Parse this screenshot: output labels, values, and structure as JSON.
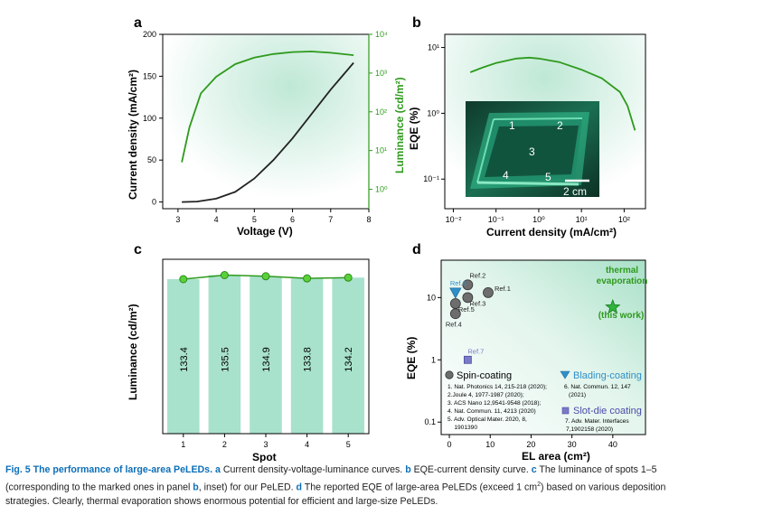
{
  "colors": {
    "green": "#2e9a1c",
    "dark": "#222222",
    "teal": "#1aa886",
    "bar_fill": "#a8e2cc",
    "star": "#2fb53a",
    "ref_gray": "#6d6d6d",
    "blade_blue": "#2f8fc8",
    "slot_purple": "#7a7ac8",
    "caption_blue": "#0d6fb8"
  },
  "panels": {
    "a": "a",
    "b": "b",
    "c": "c",
    "d": "d"
  },
  "chart_data": [
    {
      "panel": "a",
      "type": "line",
      "xlabel": "Voltage (V)",
      "ylabel": "Current density (mA/cm²)",
      "ylabel2": "Luminance (cd/m²)",
      "xlim": [
        2.6,
        8
      ],
      "ylim": [
        -8,
        200
      ],
      "y2lim_log": [
        -0.5,
        4
      ],
      "xticks": [
        "3",
        "4",
        "5",
        "6",
        "7",
        "8"
      ],
      "yticks": [
        "0",
        "50",
        "100",
        "150",
        "200"
      ],
      "y2ticks": [
        "10⁰",
        "10¹",
        "10²",
        "10³",
        "10⁴"
      ],
      "series": [
        {
          "axis": "left",
          "color": "#222222",
          "x": [
            3.1,
            3.5,
            4.0,
            4.5,
            5.0,
            5.5,
            6.0,
            6.5,
            7.0,
            7.6
          ],
          "y": [
            0,
            0.5,
            4,
            12,
            28,
            50,
            76,
            105,
            134,
            166
          ]
        },
        {
          "axis": "right_log",
          "color": "#2e9a1c",
          "x": [
            3.1,
            3.3,
            3.6,
            4.0,
            4.5,
            5.0,
            5.5,
            6.0,
            6.5,
            7.0,
            7.6
          ],
          "y": [
            5,
            40,
            300,
            800,
            1700,
            2500,
            3100,
            3500,
            3600,
            3350,
            2900
          ]
        }
      ]
    },
    {
      "panel": "b",
      "type": "line",
      "xlabel": "Current density (mA/cm²)",
      "ylabel": "EQE (%)",
      "xlog": true,
      "ylog": true,
      "xlim_log": [
        -2.2,
        2.5
      ],
      "ylim_log": [
        -1.45,
        1.2
      ],
      "xticks": [
        "10⁻²",
        "10⁻¹",
        "10⁰",
        "10¹",
        "10²"
      ],
      "yticks": [
        "10⁻¹",
        "10⁰",
        "10¹"
      ],
      "series": [
        {
          "color": "#2e9a1c",
          "x": [
            0.025,
            0.05,
            0.1,
            0.3,
            0.6,
            1,
            3,
            10,
            30,
            80,
            120,
            180
          ],
          "y": [
            4.2,
            5.0,
            5.8,
            6.8,
            7.0,
            6.8,
            6.0,
            4.6,
            3.4,
            2.1,
            1.3,
            0.55
          ]
        }
      ],
      "inset": {
        "spot_labels": [
          "1",
          "2",
          "3",
          "4",
          "5"
        ],
        "scale_label": "2 cm"
      }
    },
    {
      "panel": "c",
      "type": "bar",
      "xlabel": "Spot",
      "ylabel": "Luminance (cd/m²)",
      "categories": [
        "1",
        "2",
        "3",
        "4",
        "5"
      ],
      "values": [
        133.4,
        135.5,
        134.9,
        133.8,
        134.2
      ],
      "value_labels": [
        "133.4",
        "135.5",
        "134.9",
        "133.8",
        "134.2"
      ]
    },
    {
      "panel": "d",
      "type": "scatter",
      "xlabel": "EL area (cm²)",
      "ylabel": "EQE (%)",
      "ylog": true,
      "xlim": [
        -2,
        48
      ],
      "ylim_log": [
        -1.2,
        1.6
      ],
      "xticks": [
        "0",
        "10",
        "20",
        "30",
        "40"
      ],
      "yticks": [
        "0.1",
        "1",
        "10"
      ],
      "series": [
        {
          "group": "spin",
          "points": [
            {
              "label": "Ref.1",
              "x": 9.5,
              "y": 12
            },
            {
              "label": "Ref.2",
              "x": 4.5,
              "y": 16
            },
            {
              "label": "Ref.3",
              "x": 4.5,
              "y": 10
            },
            {
              "label": "Ref.4",
              "x": 1.5,
              "y": 5.5
            },
            {
              "label": "Ref.5",
              "x": 1.5,
              "y": 8
            }
          ]
        },
        {
          "group": "blade",
          "points": [
            {
              "label": "Ref.6",
              "x": 1.5,
              "y": 12
            }
          ]
        },
        {
          "group": "slot",
          "points": [
            {
              "label": "Ref.7",
              "x": 4.5,
              "y": 1
            }
          ]
        },
        {
          "group": "this",
          "points": [
            {
              "label": "",
              "x": 40,
              "y": 7
            }
          ]
        }
      ],
      "annotation_top": [
        "thermal",
        "evaporation"
      ],
      "annotation_bottom": "(this work)",
      "legend": {
        "spin": {
          "title": "Spin-coating",
          "refs": [
            "1. Nat. Photonics 14, 215-218 (2020);",
            "2.Joule 4, 1977-1987 (2020);",
            "3. ACS Nano 12,9541-9548 (2018);",
            "4. Nat. Commun. 11, 4213 (2020)",
            "5. Adv. Optical Mater. 2020, 8,",
            "    1901390"
          ]
        },
        "blade": {
          "title": "Blading-coating",
          "refs": [
            "6. Nat. Commun. 12, 147",
            "(2021)"
          ]
        },
        "slot": {
          "title": "Slot-die coating",
          "refs": [
            "7. Adv. Mater. Interfaces",
            "7,1902158 (2020)"
          ]
        }
      }
    }
  ],
  "caption": {
    "title": "Fig. 5 The performance of large-area PeLEDs.",
    "a_key": "a",
    "a_text": " Current density-voltage-luminance curves. ",
    "b_key": "b",
    "b_text": " EQE-current density curve. ",
    "c_key": "c",
    "c_text": " The luminance of spots 1–5",
    "line2_pre": "(corresponding to the marked ones in panel ",
    "line2_b": "b",
    "line2_mid": ", inset) for our PeLED. ",
    "d_key": "d",
    "d_text": " The reported EQE of large-area PeLEDs (exceed 1 cm",
    "d_sup": "2",
    "d_text2": ") based on various deposition",
    "line3": "strategies. Clearly, thermal evaporation shows enormous potential for efficient and large-size PeLEDs."
  }
}
